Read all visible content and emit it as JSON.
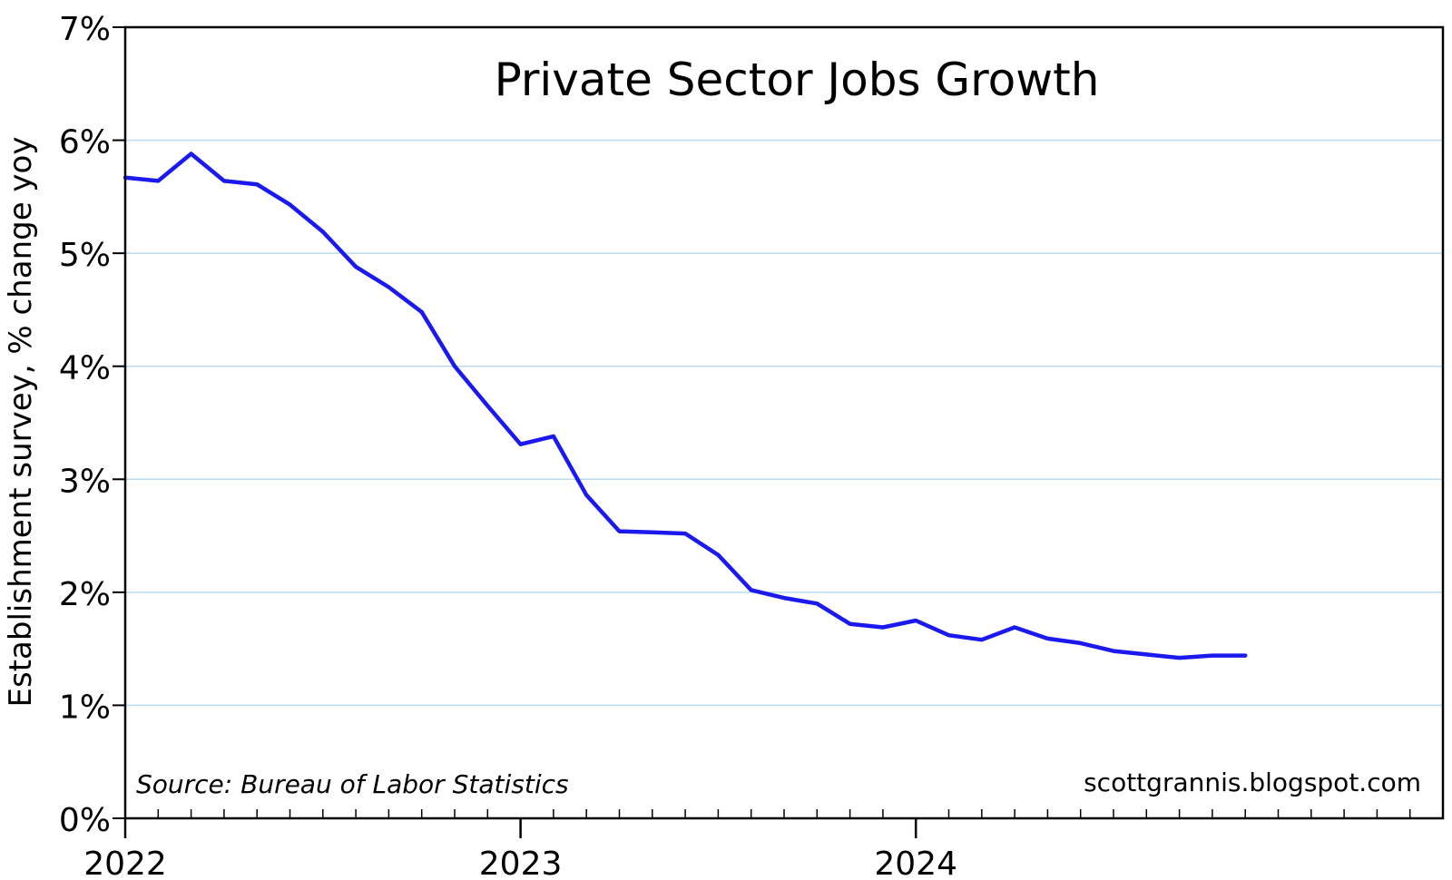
{
  "chart_data": {
    "type": "line",
    "title": "Private Sector Jobs Growth",
    "ylabel": "Establishment survey, % change yoy",
    "xlabel": "",
    "source": "Source: Bureau of Labor Statistics",
    "credit": "scottgrannis.blogspot.com",
    "ylim": [
      0,
      7
    ],
    "yticks": [
      0,
      1,
      2,
      3,
      4,
      5,
      6,
      7
    ],
    "ytick_labels": [
      "0%",
      "1%",
      "2%",
      "3%",
      "4%",
      "5%",
      "6%",
      "7%"
    ],
    "xlim": [
      "2022-01",
      "2025-05"
    ],
    "xtick_labels": [
      "2022",
      "2023",
      "2024"
    ],
    "xtick_dates": [
      "2022-01",
      "2023-01",
      "2024-01"
    ],
    "grid": true,
    "line_color": "#1a1af0",
    "grid_color": "#b9dcef",
    "series": [
      {
        "x": [
          "2022-01",
          "2022-02",
          "2022-03",
          "2022-04",
          "2022-05",
          "2022-06",
          "2022-07",
          "2022-08",
          "2022-09",
          "2022-10",
          "2022-11",
          "2022-12",
          "2023-01",
          "2023-02",
          "2023-03",
          "2023-04",
          "2023-05",
          "2023-06",
          "2023-07",
          "2023-08",
          "2023-09",
          "2023-10",
          "2023-11",
          "2023-12",
          "2024-01",
          "2024-02",
          "2024-03",
          "2024-04",
          "2024-05",
          "2024-06",
          "2024-07",
          "2024-08",
          "2024-09",
          "2024-10",
          "2024-11"
        ],
        "values": [
          5.67,
          5.64,
          5.88,
          5.64,
          5.61,
          5.43,
          5.19,
          4.88,
          4.7,
          4.48,
          4.0,
          3.65,
          3.31,
          3.38,
          2.86,
          2.54,
          2.53,
          2.52,
          2.33,
          2.02,
          1.95,
          1.9,
          1.72,
          1.69,
          1.75,
          1.62,
          1.58,
          1.69,
          1.59,
          1.55,
          1.48,
          1.45,
          1.42,
          1.44,
          1.44
        ]
      }
    ]
  }
}
